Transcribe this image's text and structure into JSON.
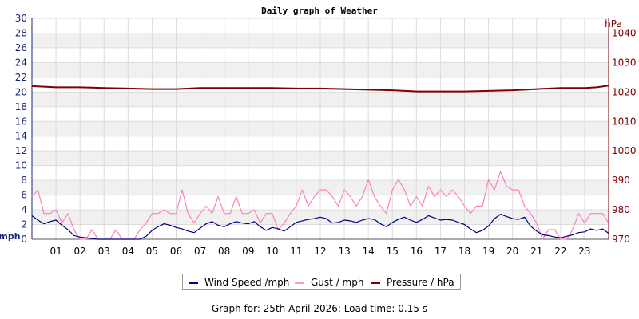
{
  "chart_data": {
    "type": "line",
    "title": "Daily graph of Weather",
    "y_left": {
      "unit_label": "mph",
      "range": [
        0,
        30
      ],
      "ticks": [
        "0",
        "2",
        "4",
        "6",
        "8",
        "10",
        "12",
        "14",
        "16",
        "18",
        "20",
        "22",
        "24",
        "26",
        "28",
        "30"
      ]
    },
    "y_right": {
      "unit_label": "hPa",
      "range": [
        970,
        1045
      ],
      "ticks": [
        "970",
        "980",
        "990",
        "1000",
        "1010",
        "1020",
        "1030",
        "1040"
      ]
    },
    "x": {
      "range": [
        0,
        24
      ],
      "tick_values": [
        1,
        2,
        3,
        4,
        5,
        6,
        7,
        8,
        9,
        10,
        11,
        12,
        13,
        14,
        15,
        16,
        17,
        18,
        19,
        20,
        21,
        22,
        23
      ],
      "ticks": [
        "01",
        "02",
        "03",
        "04",
        "05",
        "06",
        "07",
        "08",
        "09",
        "10",
        "11",
        "12",
        "13",
        "14",
        "15",
        "16",
        "17",
        "18",
        "19",
        "20",
        "21",
        "22",
        "23"
      ]
    },
    "grid": true,
    "legend_position": "bottom",
    "series": [
      {
        "name": "Wind Speed /mph",
        "axis": "left",
        "color": "#000080",
        "x": [
          0,
          0.25,
          0.5,
          0.75,
          1,
          1.25,
          1.5,
          1.75,
          2,
          2.25,
          2.5,
          2.75,
          3,
          3.25,
          3.5,
          3.75,
          4,
          4.25,
          4.5,
          4.75,
          5,
          5.25,
          5.5,
          5.75,
          6,
          6.25,
          6.5,
          6.75,
          7,
          7.25,
          7.5,
          7.75,
          8,
          8.25,
          8.5,
          8.75,
          9,
          9.25,
          9.5,
          9.75,
          10,
          10.25,
          10.5,
          10.75,
          11,
          11.25,
          11.5,
          11.75,
          12,
          12.25,
          12.5,
          12.75,
          13,
          13.25,
          13.5,
          13.75,
          14,
          14.25,
          14.5,
          14.75,
          15,
          15.25,
          15.5,
          15.75,
          16,
          16.25,
          16.5,
          16.75,
          17,
          17.25,
          17.5,
          17.75,
          18,
          18.25,
          18.5,
          18.75,
          19,
          19.25,
          19.5,
          19.75,
          20,
          20.25,
          20.5,
          20.75,
          21,
          21.25,
          21.5,
          21.75,
          22,
          22.25,
          22.5,
          22.75,
          23,
          23.25,
          23.5,
          23.75,
          24
        ],
        "values": [
          3.2,
          2.6,
          2.1,
          2.4,
          2.6,
          1.9,
          1.3,
          0.5,
          0.3,
          0.2,
          0.1,
          0,
          0,
          0,
          0,
          0,
          0,
          0,
          0,
          0.4,
          1.2,
          1.7,
          2.1,
          1.9,
          1.6,
          1.4,
          1.1,
          0.9,
          1.5,
          2.1,
          2.4,
          1.9,
          1.7,
          2.1,
          2.4,
          2.2,
          2.1,
          2.4,
          1.7,
          1.2,
          1.6,
          1.4,
          1.1,
          1.7,
          2.3,
          2.5,
          2.7,
          2.8,
          3.0,
          2.8,
          2.2,
          2.3,
          2.6,
          2.5,
          2.3,
          2.6,
          2.8,
          2.7,
          2.1,
          1.7,
          2.3,
          2.7,
          3.0,
          2.6,
          2.3,
          2.7,
          3.2,
          2.9,
          2.6,
          2.7,
          2.6,
          2.3,
          2.0,
          1.4,
          0.9,
          1.2,
          1.8,
          2.8,
          3.4,
          3.1,
          2.8,
          2.7,
          3.0,
          1.8,
          1.1,
          0.6,
          0.5,
          0.3,
          0.2,
          0.4,
          0.6,
          0.9,
          1.0,
          1.4,
          1.2,
          1.4,
          0.8
        ]
      },
      {
        "name": "Gust / mph",
        "axis": "left",
        "color": "#ff7fbf",
        "x": [
          0,
          0.25,
          0.5,
          0.75,
          1,
          1.25,
          1.5,
          1.75,
          2,
          2.25,
          2.5,
          2.75,
          3,
          3.25,
          3.5,
          3.75,
          4,
          4.25,
          4.5,
          4.75,
          5,
          5.25,
          5.5,
          5.75,
          6,
          6.25,
          6.5,
          6.75,
          7,
          7.25,
          7.5,
          7.75,
          8,
          8.25,
          8.5,
          8.75,
          9,
          9.25,
          9.5,
          9.75,
          10,
          10.25,
          10.5,
          10.75,
          11,
          11.25,
          11.5,
          11.75,
          12,
          12.25,
          12.5,
          12.75,
          13,
          13.25,
          13.5,
          13.75,
          14,
          14.25,
          14.5,
          14.75,
          15,
          15.25,
          15.5,
          15.75,
          16,
          16.25,
          16.5,
          16.75,
          17,
          17.25,
          17.5,
          17.75,
          18,
          18.25,
          18.5,
          18.75,
          19,
          19.25,
          19.5,
          19.75,
          20,
          20.25,
          20.5,
          20.75,
          21,
          21.25,
          21.5,
          21.75,
          22,
          22.25,
          22.5,
          22.75,
          23,
          23.25,
          23.5,
          23.75,
          24
        ],
        "values": [
          5.8,
          6.7,
          3.5,
          3.5,
          4.0,
          2.2,
          3.5,
          1.3,
          0,
          0,
          1.3,
          0,
          0,
          0,
          1.3,
          0,
          0,
          0,
          1.3,
          2.2,
          3.5,
          3.5,
          4.0,
          3.5,
          3.5,
          6.7,
          3.5,
          2.2,
          3.5,
          4.5,
          3.5,
          5.8,
          3.5,
          3.5,
          5.8,
          3.5,
          3.5,
          4.0,
          2.2,
          3.5,
          3.5,
          1.3,
          2.2,
          3.5,
          4.5,
          6.7,
          4.5,
          5.8,
          6.7,
          6.7,
          5.8,
          4.5,
          6.7,
          5.8,
          4.5,
          5.8,
          8.1,
          5.8,
          4.5,
          3.5,
          6.7,
          8.1,
          6.7,
          4.5,
          5.8,
          4.5,
          7.2,
          5.8,
          6.7,
          5.8,
          6.7,
          5.8,
          4.5,
          3.5,
          4.5,
          4.5,
          8.1,
          6.7,
          9.2,
          7.2,
          6.7,
          6.7,
          4.5,
          3.5,
          2.2,
          0,
          1.3,
          1.3,
          0,
          0,
          1.3,
          3.5,
          2.2,
          3.5,
          3.5,
          3.5,
          2.2
        ]
      },
      {
        "name": "Pressure / hPa",
        "axis": "right",
        "color": "#7f0000",
        "x": [
          0,
          1,
          2,
          3,
          4,
          5,
          6,
          7,
          8,
          9,
          10,
          11,
          12,
          13,
          14,
          15,
          16,
          17,
          18,
          19,
          20,
          21,
          22,
          23,
          23.5,
          24
        ],
        "values": [
          1022.0,
          1021.6,
          1021.6,
          1021.4,
          1021.2,
          1021.0,
          1021.0,
          1021.4,
          1021.4,
          1021.4,
          1021.4,
          1021.2,
          1021.2,
          1021.0,
          1020.8,
          1020.6,
          1020.2,
          1020.2,
          1020.2,
          1020.4,
          1020.6,
          1021.0,
          1021.4,
          1021.4,
          1021.6,
          1022.2
        ]
      }
    ]
  },
  "legend": [
    {
      "label": "Wind Speed /mph",
      "color": "#000080"
    },
    {
      "label": "Gust / mph",
      "color": "#ff99cc"
    },
    {
      "label": "Pressure / hPa",
      "color": "#7f0000"
    }
  ],
  "footer": "Graph for: 25th April 2026; Load time: 0.15 s"
}
